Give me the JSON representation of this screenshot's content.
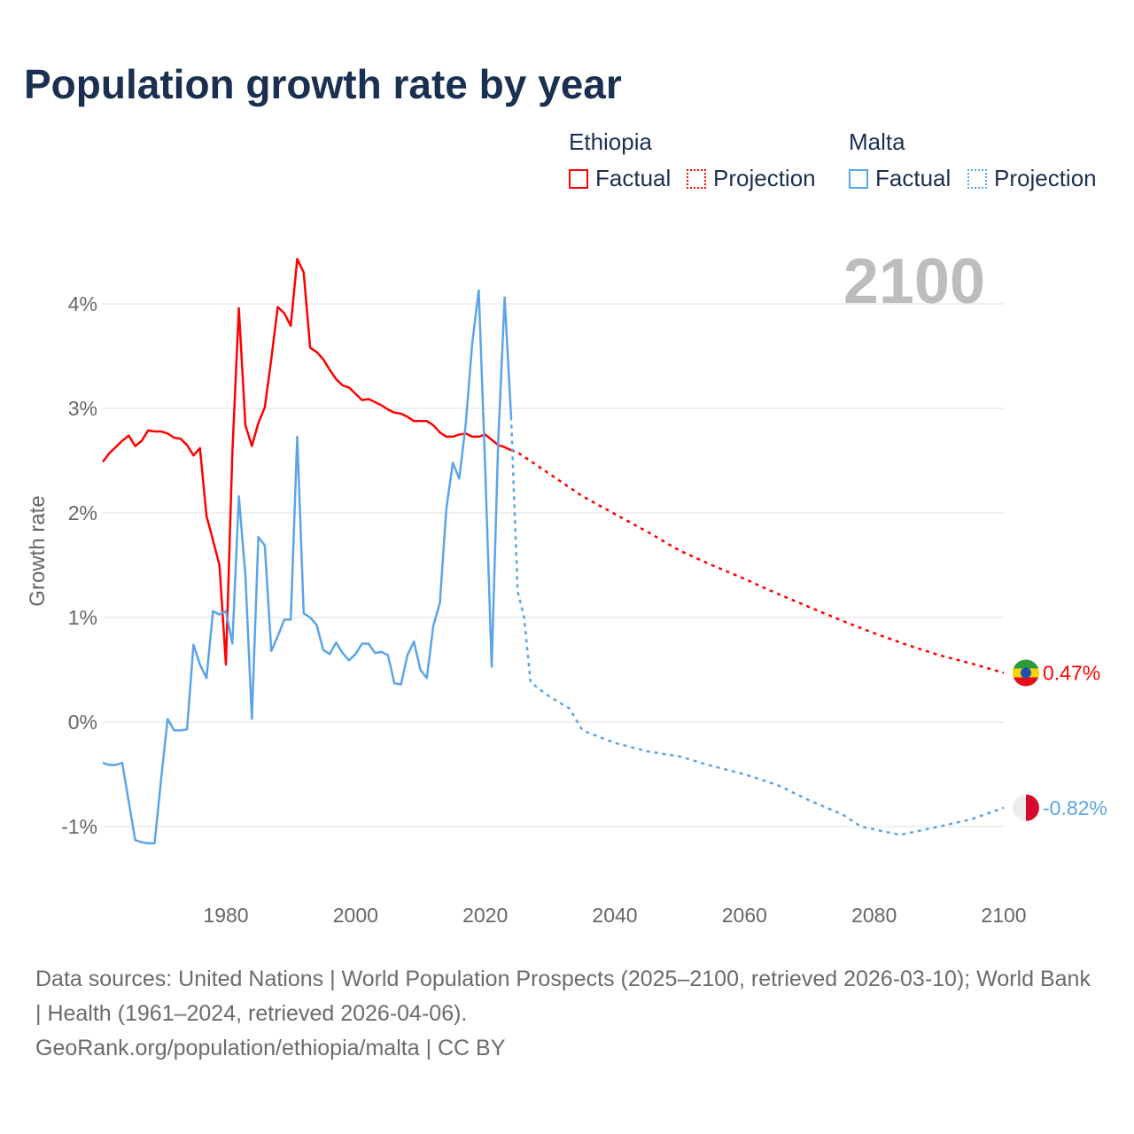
{
  "title": "Population growth rate by year",
  "legend": {
    "groups": [
      {
        "name": "Ethiopia",
        "color": "#ff0000",
        "factual": "Factual",
        "projection": "Projection"
      },
      {
        "name": "Malta",
        "color": "#5ba4e8",
        "factual": "Factual",
        "projection": "Projection"
      }
    ]
  },
  "year_label": "2100",
  "footer": {
    "sources": "Data sources: United Nations | World Population Prospects (2025–2100, retrieved 2026-03-10); World Bank | Health (1961–2024, retrieved 2026-04-06).",
    "link": "GeoRank.org/population/ethiopia/malta | CC BY"
  },
  "chart_data": {
    "type": "line",
    "title": "Population growth rate by year",
    "xlabel": "",
    "ylabel": "Growth rate",
    "xlim": [
      1961,
      2100
    ],
    "ylim": [
      -1.5,
      4.6
    ],
    "xticks": [
      1980,
      2000,
      2020,
      2040,
      2060,
      2080,
      2100
    ],
    "yticks": [
      {
        "v": -1,
        "label": "-1%"
      },
      {
        "v": 0,
        "label": "0%"
      },
      {
        "v": 1,
        "label": "1%"
      },
      {
        "v": 2,
        "label": "2%"
      },
      {
        "v": 3,
        "label": "3%"
      },
      {
        "v": 4,
        "label": "4%"
      }
    ],
    "series": [
      {
        "name": "Ethiopia",
        "color": "#ff0000",
        "end_label": "0.47%",
        "factual_start": 1961,
        "factual": [
          2.49,
          2.57,
          2.63,
          2.69,
          2.74,
          2.64,
          2.69,
          2.79,
          2.78,
          2.78,
          2.76,
          2.72,
          2.71,
          2.65,
          2.55,
          2.62,
          1.97,
          1.74,
          1.5,
          0.55,
          2.58,
          3.96,
          2.84,
          2.64,
          2.86,
          3.01,
          3.47,
          3.97,
          3.91,
          3.79,
          4.43,
          4.3,
          3.58,
          3.54,
          3.47,
          3.37,
          3.28,
          3.22,
          3.2,
          3.14,
          3.08,
          3.09,
          3.06,
          3.03,
          2.99,
          2.96,
          2.95,
          2.92,
          2.88,
          2.88,
          2.88,
          2.84,
          2.77,
          2.73,
          2.73,
          2.75,
          2.76,
          2.73,
          2.73,
          2.75,
          2.7,
          2.65,
          2.63,
          2.6
        ],
        "projection": [
          [
            2024,
            2.6
          ],
          [
            2025,
            2.58
          ],
          [
            2030,
            2.37
          ],
          [
            2035,
            2.16
          ],
          [
            2040,
            1.99
          ],
          [
            2045,
            1.82
          ],
          [
            2050,
            1.64
          ],
          [
            2055,
            1.5
          ],
          [
            2060,
            1.37
          ],
          [
            2065,
            1.23
          ],
          [
            2070,
            1.1
          ],
          [
            2075,
            0.97
          ],
          [
            2080,
            0.85
          ],
          [
            2085,
            0.74
          ],
          [
            2090,
            0.64
          ],
          [
            2095,
            0.56
          ],
          [
            2100,
            0.47
          ]
        ]
      },
      {
        "name": "Malta",
        "color": "#5ba4e8",
        "end_label": "-0.82%",
        "factual_start": 1961,
        "factual": [
          -0.39,
          -0.41,
          -0.41,
          -0.39,
          -0.76,
          -1.13,
          -1.15,
          -1.16,
          -1.16,
          -0.55,
          0.03,
          -0.08,
          -0.08,
          -0.07,
          0.74,
          0.55,
          0.42,
          1.06,
          1.03,
          1.06,
          0.75,
          2.16,
          1.4,
          0.03,
          1.77,
          1.69,
          0.68,
          0.82,
          0.98,
          0.98,
          2.73,
          1.04,
          1.0,
          0.93,
          0.69,
          0.65,
          0.76,
          0.66,
          0.59,
          0.65,
          0.75,
          0.75,
          0.66,
          0.67,
          0.64,
          0.37,
          0.36,
          0.64,
          0.77,
          0.5,
          0.42,
          0.92,
          1.14,
          2.04,
          2.48,
          2.33,
          2.85,
          3.62,
          4.13,
          2.42,
          0.53,
          2.67,
          4.06,
          2.92
        ],
        "projection": [
          [
            2024,
            2.92
          ],
          [
            2025,
            1.25
          ],
          [
            2026,
            1.0
          ],
          [
            2027,
            0.38
          ],
          [
            2030,
            0.24
          ],
          [
            2033,
            0.13
          ],
          [
            2035,
            -0.08
          ],
          [
            2040,
            -0.2
          ],
          [
            2045,
            -0.28
          ],
          [
            2050,
            -0.33
          ],
          [
            2055,
            -0.42
          ],
          [
            2060,
            -0.5
          ],
          [
            2065,
            -0.6
          ],
          [
            2070,
            -0.75
          ],
          [
            2075,
            -0.88
          ],
          [
            2078,
            -1.0
          ],
          [
            2084,
            -1.08
          ],
          [
            2090,
            -1.0
          ],
          [
            2095,
            -0.93
          ],
          [
            2100,
            -0.82
          ]
        ]
      }
    ]
  }
}
